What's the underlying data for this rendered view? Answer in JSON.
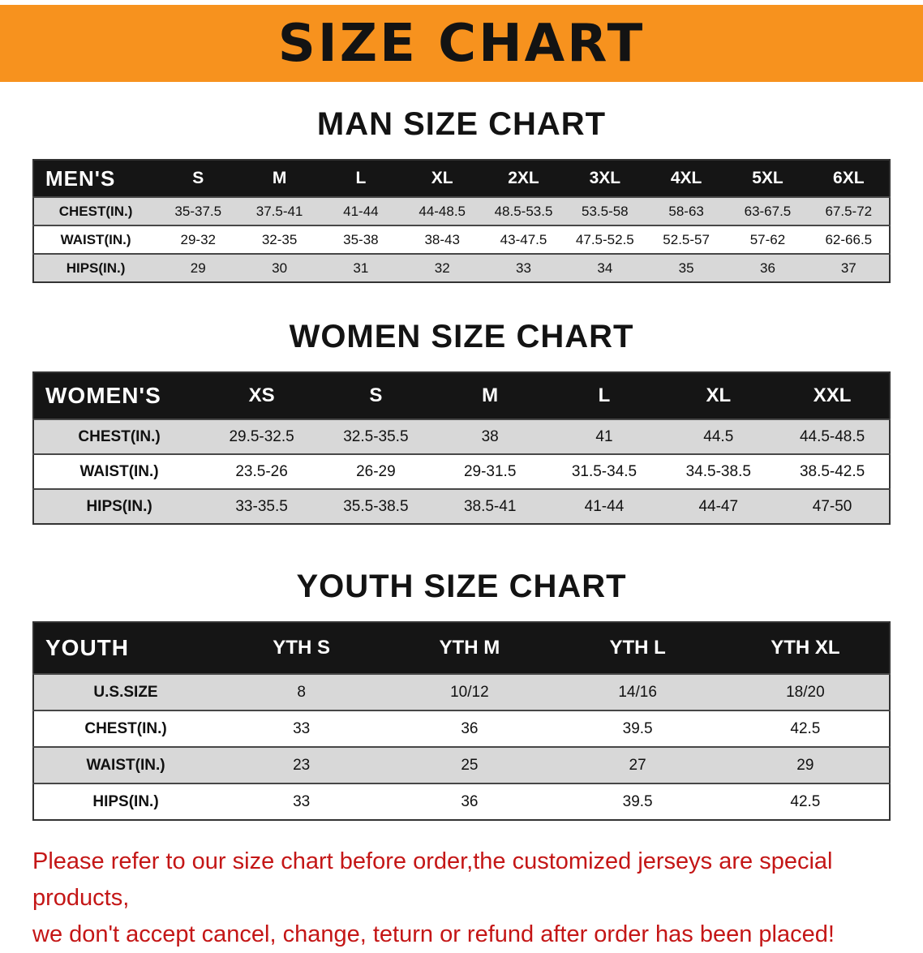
{
  "banner": {
    "title": "SIZE CHART"
  },
  "sections": [
    {
      "heading": "MAN SIZE CHART",
      "table": {
        "label": "MEN'S",
        "columns": [
          "S",
          "M",
          "L",
          "XL",
          "2XL",
          "3XL",
          "4XL",
          "5XL",
          "6XL"
        ],
        "rows": [
          {
            "label": "CHEST(IN.)",
            "values": [
              "35-37.5",
              "37.5-41",
              "41-44",
              "44-48.5",
              "48.5-53.5",
              "53.5-58",
              "58-63",
              "63-67.5",
              "67.5-72"
            ]
          },
          {
            "label": "WAIST(IN.)",
            "values": [
              "29-32",
              "32-35",
              "35-38",
              "38-43",
              "43-47.5",
              "47.5-52.5",
              "52.5-57",
              "57-62",
              "62-66.5"
            ]
          },
          {
            "label": "HIPS(IN.)",
            "values": [
              "29",
              "30",
              "31",
              "32",
              "33",
              "34",
              "35",
              "36",
              "37"
            ]
          }
        ]
      }
    },
    {
      "heading": "WOMEN SIZE CHART",
      "table": {
        "label": "WOMEN'S",
        "columns": [
          "XS",
          "S",
          "M",
          "L",
          "XL",
          "XXL"
        ],
        "rows": [
          {
            "label": "CHEST(IN.)",
            "values": [
              "29.5-32.5",
              "32.5-35.5",
              "38",
              "41",
              "44.5",
              "44.5-48.5"
            ]
          },
          {
            "label": "WAIST(IN.)",
            "values": [
              "23.5-26",
              "26-29",
              "29-31.5",
              "31.5-34.5",
              "34.5-38.5",
              "38.5-42.5"
            ]
          },
          {
            "label": "HIPS(IN.)",
            "values": [
              "33-35.5",
              "35.5-38.5",
              "38.5-41",
              "41-44",
              "44-47",
              "47-50"
            ]
          }
        ]
      }
    },
    {
      "heading": "YOUTH SIZE CHART",
      "table": {
        "label": "YOUTH",
        "columns": [
          "YTH S",
          "YTH M",
          "YTH L",
          "YTH XL"
        ],
        "rows": [
          {
            "label": "U.S.SIZE",
            "values": [
              "8",
              "10/12",
              "14/16",
              "18/20"
            ]
          },
          {
            "label": "CHEST(IN.)",
            "values": [
              "33",
              "36",
              "39.5",
              "42.5"
            ]
          },
          {
            "label": "WAIST(IN.)",
            "values": [
              "23",
              "25",
              "27",
              "29"
            ]
          },
          {
            "label": "HIPS(IN.)",
            "values": [
              "33",
              "36",
              "39.5",
              "42.5"
            ]
          }
        ]
      }
    }
  ],
  "footer": {
    "line1": "Please refer to our size chart before order,the customized jerseys are special products,",
    "line2": "we don't accept cancel, change, teturn or refund after order has been placed!"
  },
  "colors": {
    "banner_orange": "#f7921e",
    "table_header_black": "#151515",
    "row_shade_gray": "#d8d8d8",
    "note_red": "#c41616"
  }
}
